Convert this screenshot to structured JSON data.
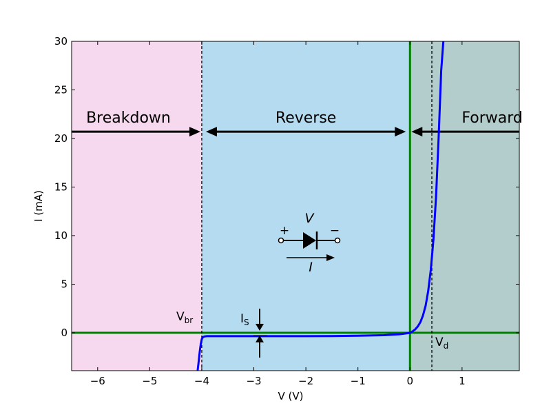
{
  "chart_data": {
    "type": "line",
    "title": "",
    "xlabel": "V (V)",
    "ylabel": "I (mA)",
    "xlim": [
      -6.5,
      2.1
    ],
    "ylim": [
      -3.9,
      30
    ],
    "x_ticks": [
      -6,
      -5,
      -4,
      -3,
      -2,
      -1,
      0,
      1
    ],
    "x_tick_labels": [
      "−6",
      "−5",
      "−4",
      "−3",
      "−2",
      "−1",
      "0",
      "1"
    ],
    "y_ticks": [
      0,
      5,
      10,
      15,
      20,
      25,
      30
    ],
    "y_tick_labels": [
      "0",
      "5",
      "10",
      "15",
      "20",
      "25",
      "30"
    ],
    "grid": false,
    "regions": [
      {
        "label": "Breakdown",
        "x_from": -6.5,
        "x_to": -4.0,
        "color": "#f7d9ef"
      },
      {
        "label": "Reverse",
        "x_from": -4.0,
        "x_to": 0.0,
        "color": "#b4dbef"
      },
      {
        "label": "Forward",
        "x_from": 0.0,
        "x_to": 2.1,
        "color": "#b3cdcc"
      }
    ],
    "region_arrow_y": 20.7,
    "series": [
      {
        "color": "#0000ff",
        "x": [
          -4.08,
          -4.06,
          -4.04,
          -4.02,
          -4.0,
          -3.98,
          -3.95,
          -3.9,
          -3.5,
          -3.0,
          -2.5,
          -2.0,
          -1.5,
          -1.0,
          -0.5,
          -0.2,
          -0.1,
          0.0,
          0.05,
          0.1,
          0.15,
          0.2,
          0.25,
          0.3,
          0.35,
          0.4,
          0.45,
          0.5,
          0.55,
          0.6,
          0.64
        ],
        "y": [
          -3.9,
          -3.0,
          -2.0,
          -1.2,
          -0.65,
          -0.45,
          -0.38,
          -0.35,
          -0.35,
          -0.35,
          -0.35,
          -0.35,
          -0.33,
          -0.3,
          -0.25,
          -0.15,
          -0.08,
          0.0,
          0.15,
          0.35,
          0.65,
          1.1,
          1.8,
          2.8,
          4.3,
          6.5,
          9.6,
          14.0,
          20.0,
          27.0,
          30.0
        ]
      }
    ],
    "reference_lines": [
      {
        "axis": "x",
        "value": 0,
        "color": "#008000",
        "style": "solid"
      },
      {
        "axis": "y",
        "value": 0,
        "color": "#008000",
        "style": "solid"
      },
      {
        "axis": "x",
        "value": -4.0,
        "color": "#000000",
        "style": "dashed"
      },
      {
        "axis": "x",
        "value": 0.42,
        "color": "#000000",
        "style": "dashed"
      }
    ],
    "annotations": {
      "vbr": {
        "main": "V",
        "sub": "br"
      },
      "vd": {
        "main": "V",
        "sub": "d"
      },
      "is": {
        "main": "I",
        "sub": "S"
      },
      "diode": {
        "v": "V",
        "i": "I",
        "plus": "+",
        "minus": "−"
      }
    }
  }
}
